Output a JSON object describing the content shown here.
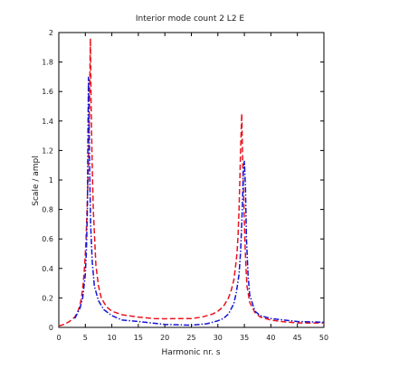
{
  "chart_data": {
    "type": "line",
    "title": "Interior mode count 2 L2 E",
    "xlabel": "Harmonic nr. s",
    "ylabel": "Scale / ampl",
    "xlim": [
      0,
      50
    ],
    "ylim": [
      0,
      2
    ],
    "x_ticks": [
      "0",
      "5",
      "10",
      "15",
      "20",
      "25",
      "30",
      "35",
      "40",
      "45",
      "50"
    ],
    "y_ticks": [
      "0",
      "0.2",
      "0.4",
      "0.6",
      "0.8",
      "1",
      "1.2",
      "1.4",
      "1.6",
      "1.8",
      "2"
    ],
    "grid": false,
    "colors": {
      "red": "#e8141e",
      "blue": "#1414d2"
    },
    "series": [
      {
        "color": "#e8141e",
        "dash": "dashed",
        "x": [
          0,
          1,
          2,
          3,
          3.5,
          4,
          4.3,
          4.6,
          4.8,
          5,
          5.15,
          5.3,
          5.5,
          5.65,
          5.8,
          5.95,
          6.1,
          6.3,
          6.5,
          7,
          7.5,
          8,
          9,
          10,
          12,
          15,
          18,
          20,
          22,
          25,
          27,
          29,
          30,
          31,
          32,
          32.5,
          33,
          33.3,
          33.6,
          33.8,
          34,
          34.15,
          34.3,
          34.5,
          34.65,
          34.8,
          34.95,
          35.1,
          35.3,
          35.5,
          36,
          37,
          38,
          40,
          42,
          45,
          47,
          50
        ],
        "y": [
          0.01,
          0.02,
          0.04,
          0.07,
          0.1,
          0.15,
          0.21,
          0.3,
          0.38,
          0.5,
          0.62,
          0.78,
          1.0,
          1.22,
          1.55,
          1.96,
          1.5,
          1.1,
          0.8,
          0.42,
          0.28,
          0.2,
          0.14,
          0.11,
          0.085,
          0.07,
          0.06,
          0.058,
          0.06,
          0.06,
          0.07,
          0.09,
          0.11,
          0.14,
          0.2,
          0.25,
          0.32,
          0.4,
          0.5,
          0.62,
          0.8,
          1.0,
          1.22,
          1.45,
          1.2,
          0.98,
          0.78,
          0.58,
          0.4,
          0.28,
          0.17,
          0.1,
          0.07,
          0.05,
          0.04,
          0.03,
          0.03,
          0.03
        ]
      },
      {
        "color": "#1414d2",
        "dash": "dashdot",
        "x": [
          3,
          4,
          4.5,
          5,
          5.2,
          5.4,
          5.5,
          5.6,
          5.7,
          5.85,
          6,
          6.3,
          6.7,
          7.5,
          8.5,
          10,
          12,
          15,
          20,
          25,
          28,
          30,
          31,
          32,
          33,
          33.5,
          34,
          34.3,
          34.6,
          34.8,
          35,
          35.2,
          35.4,
          35.7,
          36,
          37,
          38,
          40,
          45,
          50
        ],
        "y": [
          0.06,
          0.13,
          0.2,
          0.36,
          0.52,
          0.8,
          1.3,
          1.7,
          1.4,
          1.0,
          0.7,
          0.45,
          0.28,
          0.18,
          0.12,
          0.08,
          0.05,
          0.04,
          0.02,
          0.015,
          0.025,
          0.045,
          0.06,
          0.09,
          0.16,
          0.24,
          0.36,
          0.52,
          0.8,
          1.05,
          1.13,
          0.95,
          0.6,
          0.35,
          0.22,
          0.11,
          0.08,
          0.06,
          0.04,
          0.035
        ]
      }
    ]
  }
}
